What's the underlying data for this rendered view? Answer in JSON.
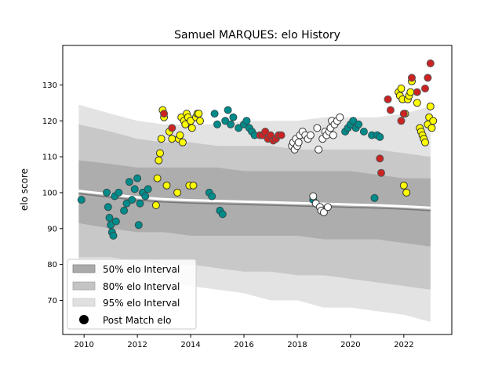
{
  "chart_data": {
    "type": "scatter",
    "title": "Samuel MARQUES: elo History",
    "xlabel": "",
    "ylabel": "elo score",
    "xlim": [
      2009.2,
      2023.8
    ],
    "ylim": [
      60.5,
      141
    ],
    "xticks": [
      2010,
      2012,
      2014,
      2016,
      2018,
      2020,
      2022
    ],
    "yticks": [
      70,
      80,
      90,
      100,
      110,
      120,
      130
    ],
    "grid": false,
    "legend_position": "lower-left",
    "legend": [
      {
        "label": "50% elo Interval",
        "kind": "band",
        "color": "#aaaaaa"
      },
      {
        "label": "80% elo Interval",
        "kind": "band",
        "color": "#c4c4c4"
      },
      {
        "label": "95% elo Interval",
        "kind": "band",
        "color": "#e0e0e0"
      },
      {
        "label": "Post Match elo",
        "kind": "marker",
        "color": "#000000"
      }
    ],
    "bands": {
      "x": [
        2009.8,
        2011,
        2012,
        2013,
        2014,
        2015,
        2016,
        2017,
        2018,
        2019,
        2020,
        2021,
        2022,
        2023
      ],
      "p95_upper": [
        124.5,
        122,
        120,
        119,
        119,
        119,
        120,
        120,
        120,
        121,
        121,
        121,
        122,
        124
      ],
      "p95_lower": [
        76.5,
        78,
        76,
        75,
        74,
        73,
        72,
        70,
        70,
        68,
        68,
        67,
        66,
        64
      ],
      "p80_upper": [
        119,
        117,
        115,
        114,
        114,
        113,
        113,
        113,
        112,
        112,
        112,
        112,
        111,
        110
      ],
      "p80_lower": [
        82,
        82,
        81,
        80,
        80,
        79,
        78,
        78,
        77,
        77,
        76,
        75,
        74,
        73
      ],
      "p50_upper": [
        109,
        108,
        107,
        107,
        107,
        107,
        106,
        106,
        106,
        106,
        106,
        105,
        104,
        104
      ],
      "p50_lower": [
        91.5,
        90,
        89,
        89,
        88,
        88,
        88,
        88,
        88,
        87,
        87,
        87,
        86,
        85
      ]
    },
    "mean_line": {
      "x": [
        2009.8,
        2011,
        2012,
        2013,
        2014,
        2015,
        2016,
        2017,
        2018,
        2019,
        2020,
        2021,
        2022,
        2023
      ],
      "y": [
        100.5,
        99.5,
        98.7,
        98.2,
        97.9,
        97.7,
        97.5,
        97.3,
        97.1,
        96.9,
        96.7,
        96.5,
        96.2,
        95.8
      ]
    },
    "series": [
      {
        "name": "teal",
        "fill": "#008b8b",
        "edge": "#2f4f4f",
        "x": [
          2009.9,
          2010.85,
          2010.9,
          2010.95,
          2011.0,
          2011.05,
          2011.1,
          2011.15,
          2011.2,
          2011.3,
          2011.5,
          2011.6,
          2011.7,
          2011.8,
          2011.9,
          2012.0,
          2012.05,
          2012.1,
          2012.2,
          2012.3,
          2012.4,
          2014.7,
          2014.8,
          2014.9,
          2015.0,
          2015.1,
          2015.2,
          2015.3,
          2015.4,
          2015.5,
          2015.6,
          2015.8,
          2016.0,
          2016.1,
          2016.2,
          2016.3,
          2016.4,
          2018.6,
          2019.8,
          2019.9,
          2020.0,
          2020.1,
          2020.2,
          2020.3,
          2020.5,
          2020.8,
          2020.9,
          2021.0,
          2021.1
        ],
        "y": [
          98,
          100,
          96,
          93,
          91,
          89,
          88,
          99,
          92,
          100,
          95,
          97,
          103,
          98,
          101,
          104,
          91,
          97,
          100,
          99,
          101,
          100,
          99,
          122,
          119,
          95,
          94,
          120,
          123,
          119,
          121,
          118,
          119,
          120,
          118,
          117,
          116,
          98,
          117,
          118,
          119,
          120,
          118,
          119,
          117,
          116,
          98.5,
          116,
          115.5
        ]
      },
      {
        "name": "yellow",
        "fill": "#ffff00",
        "edge": "#333333",
        "x": [
          2012.7,
          2012.75,
          2012.8,
          2012.85,
          2012.9,
          2012.95,
          2013.0,
          2013.1,
          2013.2,
          2013.3,
          2013.5,
          2013.55,
          2013.6,
          2013.65,
          2013.7,
          2013.75,
          2013.8,
          2013.85,
          2013.9,
          2013.95,
          2014.0,
          2014.05,
          2014.1,
          2014.2,
          2014.25,
          2014.3,
          2014.35,
          2021.8,
          2021.85,
          2021.9,
          2021.95,
          2022.0,
          2022.05,
          2022.1,
          2022.15,
          2022.2,
          2022.25,
          2022.3,
          2022.5,
          2022.6,
          2022.65,
          2022.7,
          2022.75,
          2022.8,
          2022.9,
          2022.95,
          2023.0,
          2023.05,
          2023.1
        ],
        "y": [
          96.5,
          104,
          109,
          111,
          115,
          123,
          121,
          102,
          117,
          115,
          100,
          115,
          116,
          121,
          114,
          120,
          119,
          122,
          121,
          102,
          120,
          118,
          102,
          121,
          122,
          122,
          120,
          128,
          127,
          129,
          126,
          102,
          122,
          100,
          126,
          127,
          128,
          131,
          125,
          118,
          117,
          116,
          115,
          114,
          119,
          121,
          124,
          118,
          120
        ]
      },
      {
        "name": "red",
        "fill": "#cc2222",
        "edge": "#555555",
        "x": [
          2013.0,
          2013.3,
          2016.6,
          2016.7,
          2016.8,
          2016.9,
          2017.0,
          2017.1,
          2017.2,
          2017.3,
          2017.4,
          2021.1,
          2021.15,
          2021.4,
          2021.5,
          2021.9,
          2022.0,
          2022.3,
          2022.5,
          2022.8,
          2022.9,
          2023.0
        ],
        "y": [
          122,
          118,
          116,
          116,
          117,
          115,
          116,
          114.5,
          115,
          116,
          116,
          109.5,
          105.5,
          126,
          123,
          120,
          122,
          132,
          128,
          129,
          132,
          136
        ]
      },
      {
        "name": "white",
        "fill": "#ffffff",
        "edge": "#333333",
        "x": [
          2017.8,
          2017.85,
          2017.9,
          2017.95,
          2018.0,
          2018.05,
          2018.1,
          2018.2,
          2018.3,
          2018.4,
          2018.5,
          2018.6,
          2018.7,
          2018.75,
          2018.8,
          2018.85,
          2018.9,
          2018.95,
          2019.0,
          2019.05,
          2019.1,
          2019.15,
          2019.2,
          2019.25,
          2019.3,
          2019.35,
          2019.4,
          2019.5,
          2019.6
        ],
        "y": [
          113,
          114,
          112,
          115,
          113,
          114,
          116,
          117,
          116,
          115,
          116,
          99,
          97,
          118,
          112,
          96,
          95,
          115,
          94.5,
          117,
          116,
          96,
          117,
          118,
          120,
          116,
          119,
          120,
          121
        ]
      }
    ]
  }
}
